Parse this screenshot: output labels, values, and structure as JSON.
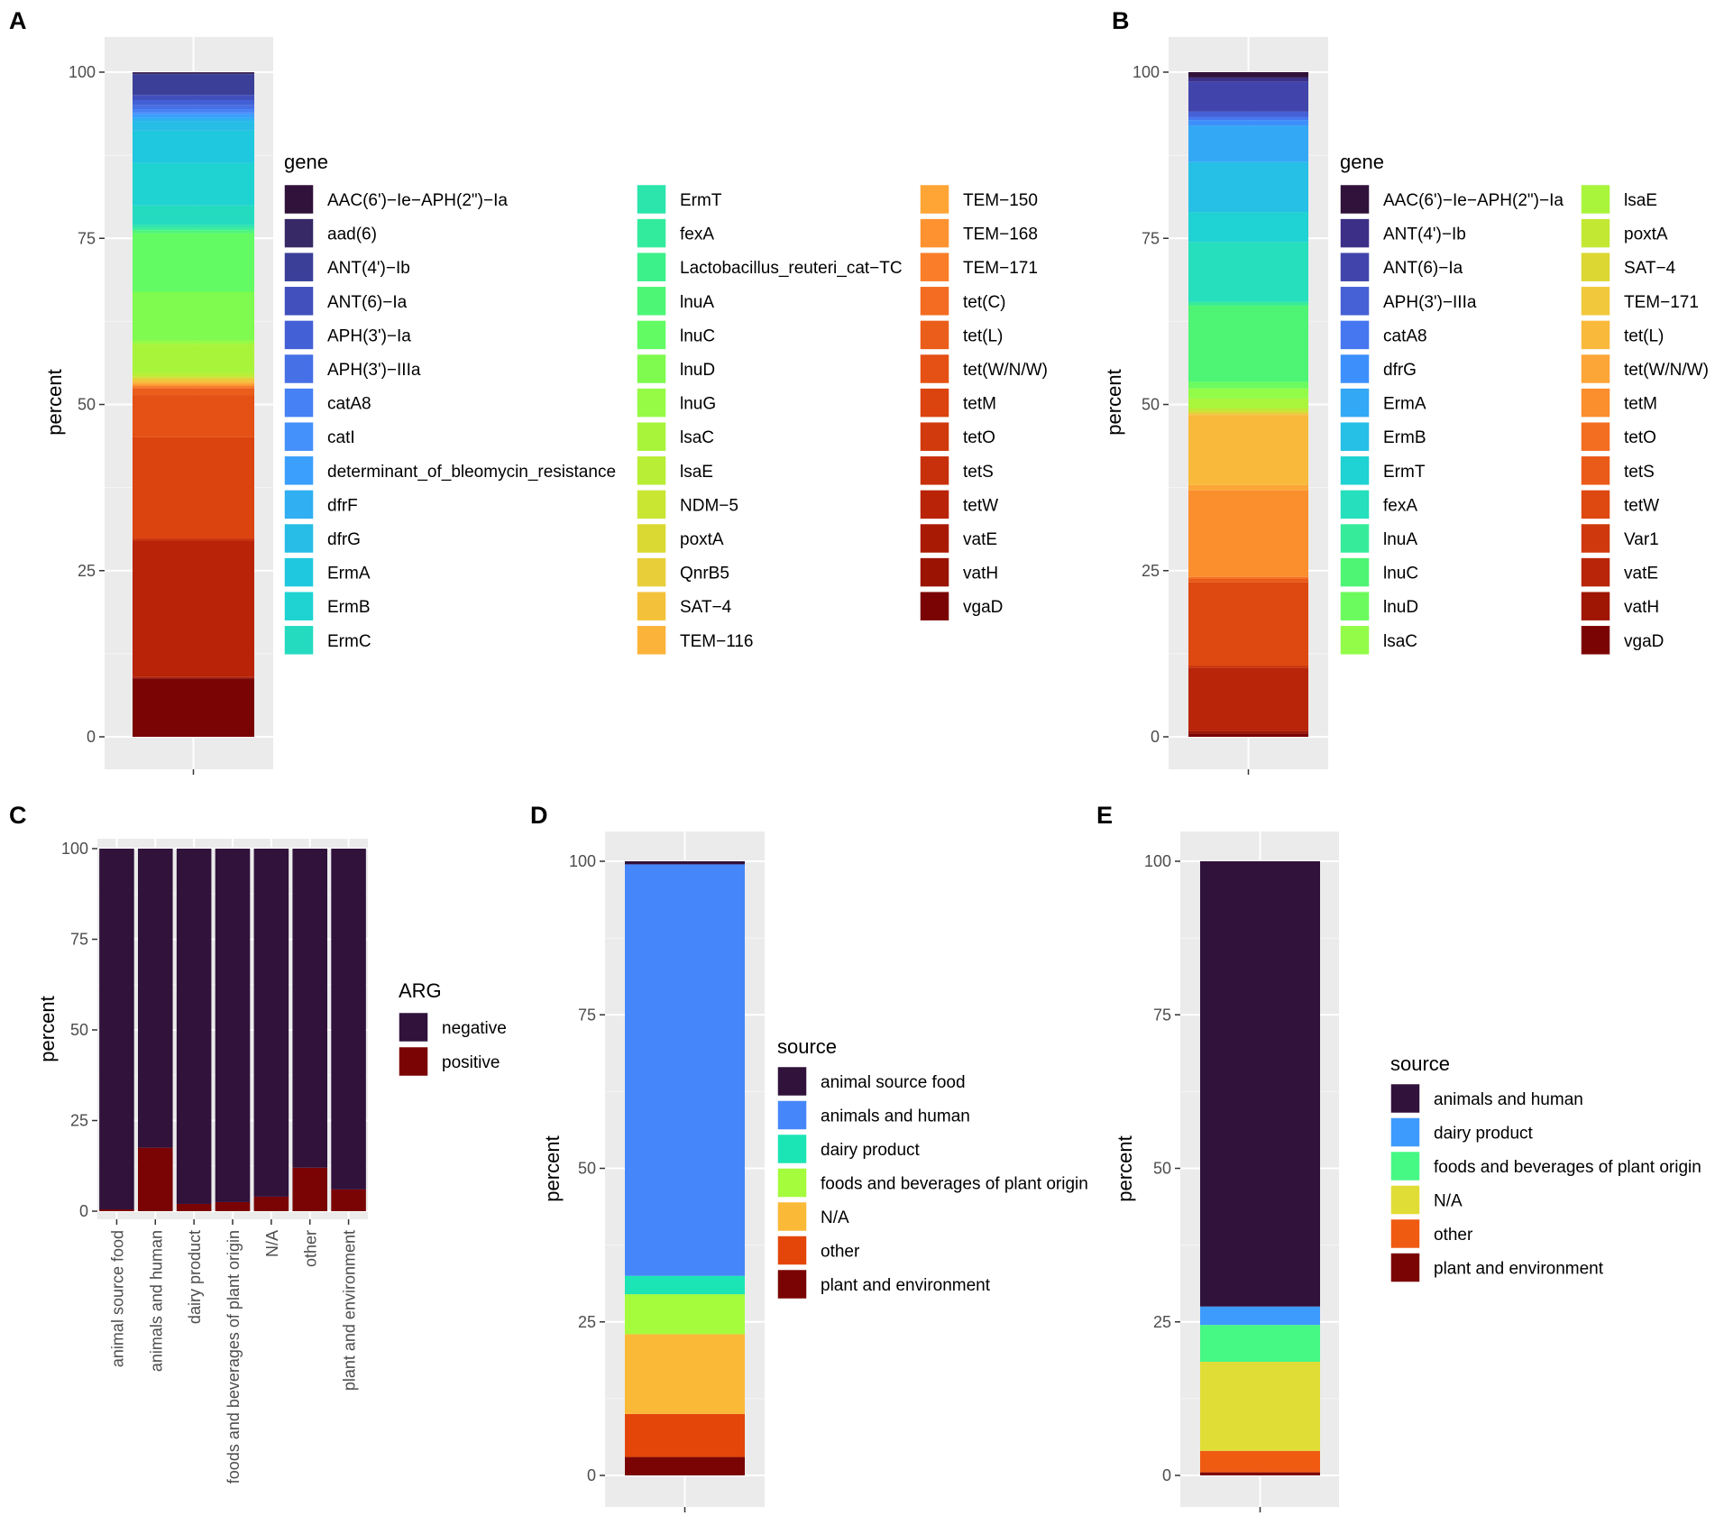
{
  "figure": {
    "panel_labels": [
      "A",
      "B",
      "C",
      "D",
      "E"
    ]
  },
  "chart_data": [
    {
      "panel": "A",
      "type": "bar",
      "stacked": true,
      "ylabel": "percent",
      "xlabel": "",
      "ylim": [
        0,
        100
      ],
      "yticks": [
        0,
        25,
        50,
        75,
        100
      ],
      "legend_title": "gene",
      "legend_columns": 3,
      "legend_rows_per_column": 14,
      "series": [
        {
          "name": "AAC(6')−Ie−APH(2\")−Ia",
          "color": "#30123b",
          "value": 0.1
        },
        {
          "name": "aad(6)",
          "color": "#362966",
          "value": 0.2
        },
        {
          "name": "ANT(4')−Ib",
          "color": "#3b3f98",
          "value": 3.2
        },
        {
          "name": "ANT(6)−Ia",
          "color": "#4150bd",
          "value": 0.8
        },
        {
          "name": "APH(3')−Ia",
          "color": "#4460d6",
          "value": 0.8
        },
        {
          "name": "APH(3')−IIIa",
          "color": "#4670e6",
          "value": 0.6
        },
        {
          "name": "catA8",
          "color": "#4681f5",
          "value": 0.5
        },
        {
          "name": "catI",
          "color": "#4491fb",
          "value": 0.3
        },
        {
          "name": "determinant_of_bleomycin_resistance",
          "color": "#3b9ffd",
          "value": 0.5
        },
        {
          "name": "dfrF",
          "color": "#30aff2",
          "value": 0.5
        },
        {
          "name": "dfrG",
          "color": "#27bde6",
          "value": 1.5
        },
        {
          "name": "ErmA",
          "color": "#1fc8de",
          "value": 5.0
        },
        {
          "name": "ErmB",
          "color": "#1ed3d1",
          "value": 6.5
        },
        {
          "name": "ErmC",
          "color": "#24dbc0",
          "value": 3.0
        },
        {
          "name": "ErmT",
          "color": "#2ce5ac",
          "value": 0.4
        },
        {
          "name": "fexA",
          "color": "#32eb9c",
          "value": 0.3
        },
        {
          "name": "Lactobacillus_reuteri_cat−TC",
          "color": "#3cf08a",
          "value": 0.2
        },
        {
          "name": "lnuA",
          "color": "#4df775",
          "value": 0.4
        },
        {
          "name": "lnuC",
          "color": "#62fb63",
          "value": 9.0
        },
        {
          "name": "lnuD",
          "color": "#7efb4e",
          "value": 7.5
        },
        {
          "name": "lnuG",
          "color": "#95fb44",
          "value": 0.5
        },
        {
          "name": "lsaC",
          "color": "#a8f43a",
          "value": 4.5
        },
        {
          "name": "lsaE",
          "color": "#b8ee36",
          "value": 0.5
        },
        {
          "name": "NDM−5",
          "color": "#c9e633",
          "value": 0.2
        },
        {
          "name": "poxtA",
          "color": "#dad933",
          "value": 0.2
        },
        {
          "name": "QnrB5",
          "color": "#e8ce38",
          "value": 0.2
        },
        {
          "name": "SAT−4",
          "color": "#f4c23a",
          "value": 0.3
        },
        {
          "name": "TEM−116",
          "color": "#fbb33a",
          "value": 0.2
        },
        {
          "name": "TEM−150",
          "color": "#fea535",
          "value": 0.2
        },
        {
          "name": "TEM−168",
          "color": "#fe9230",
          "value": 0.2
        },
        {
          "name": "TEM−171",
          "color": "#fa7e29",
          "value": 0.2
        },
        {
          "name": "tet(C)",
          "color": "#f36c21",
          "value": 0.2
        },
        {
          "name": "tet(L)",
          "color": "#ea5d1a",
          "value": 1.0
        },
        {
          "name": "tet(W/N/W)",
          "color": "#e55014",
          "value": 6.5
        },
        {
          "name": "tetM",
          "color": "#db430f",
          "value": 15.5
        },
        {
          "name": "tetO",
          "color": "#d13a0c",
          "value": 0.2
        },
        {
          "name": "tetS",
          "color": "#c7300a",
          "value": 0.2
        },
        {
          "name": "tetW",
          "color": "#b92308",
          "value": 21.0
        },
        {
          "name": "vatE",
          "color": "#a91a05",
          "value": 0.1
        },
        {
          "name": "vatH",
          "color": "#9a1303",
          "value": 0.1
        },
        {
          "name": "vgaD",
          "color": "#7a0403",
          "value": 9.0
        }
      ]
    },
    {
      "panel": "B",
      "type": "bar",
      "stacked": true,
      "ylabel": "percent",
      "xlabel": "",
      "ylim": [
        0,
        100
      ],
      "yticks": [
        0,
        25,
        50,
        75,
        100
      ],
      "legend_title": "gene",
      "legend_columns": 2,
      "legend_rows_per_column": 14,
      "series": [
        {
          "name": "AAC(6')−Ie−APH(2\")−Ia",
          "color": "#30123b",
          "value": 0.8
        },
        {
          "name": "ANT(4')−Ib",
          "color": "#3b2f87",
          "value": 0.6
        },
        {
          "name": "ANT(6)−Ia",
          "color": "#4145ab",
          "value": 4.5
        },
        {
          "name": "APH(3')−IIIa",
          "color": "#4660d5",
          "value": 0.8
        },
        {
          "name": "catA8",
          "color": "#4677f0",
          "value": 0.5
        },
        {
          "name": "dfrG",
          "color": "#3d90fb",
          "value": 0.8
        },
        {
          "name": "ErmA",
          "color": "#33a8f5",
          "value": 5.5
        },
        {
          "name": "ErmB",
          "color": "#26bfe6",
          "value": 7.5
        },
        {
          "name": "ErmT",
          "color": "#1fd2d3",
          "value": 4.5
        },
        {
          "name": "fexA",
          "color": "#25dfbd",
          "value": 9.0
        },
        {
          "name": "lnuA",
          "color": "#36ec9a",
          "value": 0.5
        },
        {
          "name": "lnuC",
          "color": "#4ef474",
          "value": 11.5
        },
        {
          "name": "lnuD",
          "color": "#6bfb5e",
          "value": 1.0
        },
        {
          "name": "lsaC",
          "color": "#93fc49",
          "value": 1.5
        },
        {
          "name": "lsaE",
          "color": "#a9f53b",
          "value": 1.5
        },
        {
          "name": "poxtA",
          "color": "#c3e834",
          "value": 0.5
        },
        {
          "name": "SAT−4",
          "color": "#dcd733",
          "value": 0.2
        },
        {
          "name": "TEM−171",
          "color": "#f1c83b",
          "value": 0.3
        },
        {
          "name": "tet(L)",
          "color": "#f9b93b",
          "value": 10.5
        },
        {
          "name": "tet(W/N/W)",
          "color": "#fca637",
          "value": 0.8
        },
        {
          "name": "tetM",
          "color": "#fb8e2d",
          "value": 13.0
        },
        {
          "name": "tetO",
          "color": "#f46e22",
          "value": 0.3
        },
        {
          "name": "tetS",
          "color": "#ea5b19",
          "value": 0.5
        },
        {
          "name": "tetW",
          "color": "#de4811",
          "value": 12.5
        },
        {
          "name": "Var1",
          "color": "#ce380c",
          "value": 0.3
        },
        {
          "name": "vatE",
          "color": "#b82508",
          "value": 9.5
        },
        {
          "name": "vatH",
          "color": "#9f1604",
          "value": 0.4
        },
        {
          "name": "vgaD",
          "color": "#7a0403",
          "value": 0.5
        }
      ]
    },
    {
      "panel": "C",
      "type": "bar",
      "stacked": true,
      "ylabel": "percent",
      "xlabel": "",
      "ylim": [
        0,
        100
      ],
      "yticks": [
        0,
        25,
        50,
        75,
        100
      ],
      "legend_title": "ARG",
      "categories": [
        "animal source food",
        "animals and human",
        "dairy product",
        "foods and beverages of plant origin",
        "N/A",
        "other",
        "plant and environment"
      ],
      "series": [
        {
          "name": "negative",
          "color": "#30123b",
          "values": [
            99.5,
            82.5,
            98.0,
            97.5,
            96.0,
            88.0,
            94.0
          ]
        },
        {
          "name": "positive",
          "color": "#7a0403",
          "values": [
            0.5,
            17.5,
            2.0,
            2.5,
            4.0,
            12.0,
            6.0
          ]
        }
      ]
    },
    {
      "panel": "D",
      "type": "bar",
      "stacked": true,
      "ylabel": "percent",
      "xlabel": "",
      "ylim": [
        0,
        100
      ],
      "yticks": [
        0,
        25,
        50,
        75,
        100
      ],
      "legend_title": "source",
      "series": [
        {
          "name": "animal source food",
          "color": "#30123b",
          "value": 0.5
        },
        {
          "name": "animals and human",
          "color": "#4686fb",
          "value": 67.0
        },
        {
          "name": "dairy product",
          "color": "#1be5b5",
          "value": 3.0
        },
        {
          "name": "foods and beverages of plant origin",
          "color": "#a4fc3c",
          "value": 6.5
        },
        {
          "name": "N/A",
          "color": "#fbb938",
          "value": 13.0
        },
        {
          "name": "other",
          "color": "#e4460a",
          "value": 7.0
        },
        {
          "name": "plant and environment",
          "color": "#7a0403",
          "value": 3.0
        }
      ]
    },
    {
      "panel": "E",
      "type": "bar",
      "stacked": true,
      "ylabel": "percent",
      "xlabel": "",
      "ylim": [
        0,
        100
      ],
      "yticks": [
        0,
        25,
        50,
        75,
        100
      ],
      "legend_title": "source",
      "series": [
        {
          "name": "animals and human",
          "color": "#30123b",
          "value": 72.5
        },
        {
          "name": "dairy product",
          "color": "#3e9bfe",
          "value": 3.0
        },
        {
          "name": "foods and beverages of plant origin",
          "color": "#46f884",
          "value": 6.0
        },
        {
          "name": "N/A",
          "color": "#e1dd37",
          "value": 14.5
        },
        {
          "name": "other",
          "color": "#f05b12",
          "value": 3.5
        },
        {
          "name": "plant and environment",
          "color": "#7a0403",
          "value": 0.5
        }
      ]
    }
  ]
}
